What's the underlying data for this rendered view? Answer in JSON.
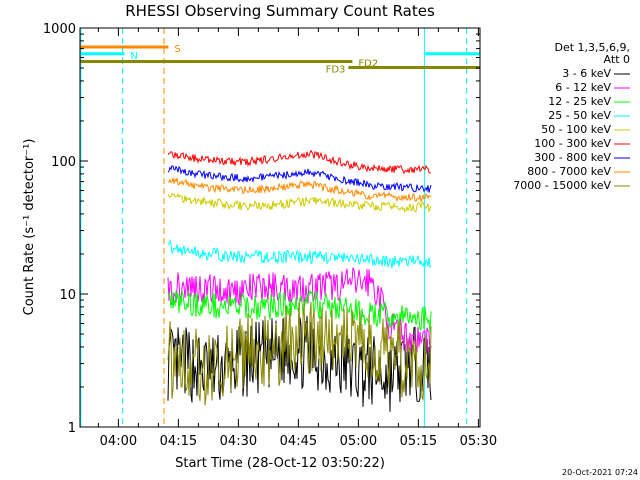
{
  "chart_data": {
    "type": "line",
    "title": "RHESSI Observing Summary Count Rates",
    "xlabel": "Start Time (28-Oct-12 03:50:22)",
    "ylabel": "Count Rate (s⁻¹ detector⁻¹)",
    "yscale": "log",
    "ylim": [
      1,
      1000
    ],
    "xlim_minutes": [
      230.4,
      330.4
    ],
    "x_ticks": [
      {
        "minute": 240,
        "label": "04:00"
      },
      {
        "minute": 255,
        "label": "04:15"
      },
      {
        "minute": 270,
        "label": "04:30"
      },
      {
        "minute": 285,
        "label": "04:45"
      },
      {
        "minute": 300,
        "label": "05:00"
      },
      {
        "minute": 315,
        "label": "05:15"
      },
      {
        "minute": 330,
        "label": "05:30"
      }
    ],
    "y_ticks": [
      {
        "value": 1,
        "label": "1"
      },
      {
        "value": 10,
        "label": "10"
      },
      {
        "value": 100,
        "label": "100"
      },
      {
        "value": 1000,
        "label": "1000"
      }
    ],
    "legend": {
      "title_lines": [
        "Det 1,3,5,6,9,",
        "Att 0"
      ],
      "position": "right"
    },
    "series": [
      {
        "name": "3 - 6 keV",
        "color": "#000000",
        "start": 252.3,
        "end": 318.2,
        "base": [
          3.0,
          3.0,
          2.6,
          2.8,
          3.2,
          3.4,
          3.8,
          3.6,
          3.2,
          2.8,
          2.6,
          2.4,
          3.0,
          2.8
        ],
        "noise": 0.28
      },
      {
        "name": "6 - 12 keV",
        "color": "#ff00ff",
        "start": 252.3,
        "end": 318.2,
        "base": [
          10.5,
          11.5,
          11.0,
          10.5,
          10.8,
          11.2,
          11.2,
          11.2,
          11.5,
          12.0,
          12.5,
          5.5,
          4.6,
          4.6
        ],
        "noise": 0.12
      },
      {
        "name": "12 - 25 keV",
        "color": "#00ff00",
        "start": 252.3,
        "end": 318.2,
        "base": [
          9.0,
          8.5,
          8.3,
          8.0,
          8.0,
          8.0,
          8.5,
          8.5,
          8.0,
          7.5,
          7.0,
          6.8,
          6.6,
          6.5
        ],
        "noise": 0.1
      },
      {
        "name": "25 - 50 keV",
        "color": "#00ffff",
        "start": 252.3,
        "end": 318.2,
        "base": [
          23,
          21,
          20,
          19,
          19,
          19,
          19,
          19,
          19,
          18,
          18,
          17.5,
          17.5,
          17.5
        ],
        "noise": 0.05
      },
      {
        "name": "50 - 100 keV",
        "color": "#cccc00",
        "start": 252.3,
        "end": 318.2,
        "base": [
          55,
          52,
          49,
          47,
          46,
          46,
          48,
          50,
          49,
          47,
          46,
          45,
          45,
          45
        ],
        "noise": 0.035
      },
      {
        "name": "100 - 300 keV",
        "color": "#ff0000",
        "start": 252.3,
        "end": 318.2,
        "base": [
          112,
          106,
          102,
          99,
          99,
          103,
          109,
          113,
          104,
          94,
          89,
          87,
          86,
          86
        ],
        "noise": 0.03
      },
      {
        "name": "300 - 800 keV",
        "color": "#0000ff",
        "start": 252.3,
        "end": 318.2,
        "base": [
          88,
          82,
          78,
          75,
          74,
          76,
          80,
          82,
          76,
          70,
          66,
          64,
          63,
          62
        ],
        "noise": 0.03
      },
      {
        "name": "800 - 7000 keV",
        "color": "#ff8800",
        "start": 252.3,
        "end": 318.2,
        "base": [
          72,
          67,
          63,
          61,
          60,
          62,
          65,
          67,
          62,
          58,
          55,
          54,
          53,
          53
        ],
        "noise": 0.03
      },
      {
        "name": "7000 - 15000 keV",
        "color": "#888800",
        "start": 252.3,
        "end": 318.2,
        "base": [
          3.2,
          3.2,
          2.8,
          3.2,
          3.6,
          3.8,
          4.2,
          4.6,
          4.8,
          4.4,
          3.8,
          3.4,
          3.2,
          3.2
        ],
        "noise": 0.3
      }
    ],
    "flag_bars": [
      {
        "label": "S",
        "color": "#ff8800",
        "y": 720,
        "start": 230.4,
        "end": 252.5,
        "label_side": "right"
      },
      {
        "label": "N",
        "color": "#00ffff",
        "y": 640,
        "start": 230.4,
        "end": 241.5,
        "label_side": "right"
      },
      {
        "label": "N",
        "color": "#00ffff",
        "y": 640,
        "start": 316.7,
        "end": 330.4,
        "label_side": "none"
      },
      {
        "label": "FD2",
        "color": "#888800",
        "y": 560,
        "start": 230.4,
        "end": 298.5,
        "label_side": "right"
      },
      {
        "label": "FD3",
        "color": "#888800",
        "y": 505,
        "start": 297.5,
        "end": 330.4,
        "label_side": "left"
      }
    ],
    "vlines": [
      {
        "minute": 230.6,
        "color": "#00ffff",
        "style": "solid"
      },
      {
        "minute": 241.0,
        "color": "#00ffff",
        "style": "dashed"
      },
      {
        "minute": 251.4,
        "color": "#ff8800",
        "style": "dashed"
      },
      {
        "minute": 316.5,
        "color": "#00ffff",
        "style": "solid"
      },
      {
        "minute": 327.0,
        "color": "#00ffff",
        "style": "dashed"
      }
    ],
    "timestamp": "20-Oct-2021 07:24"
  }
}
